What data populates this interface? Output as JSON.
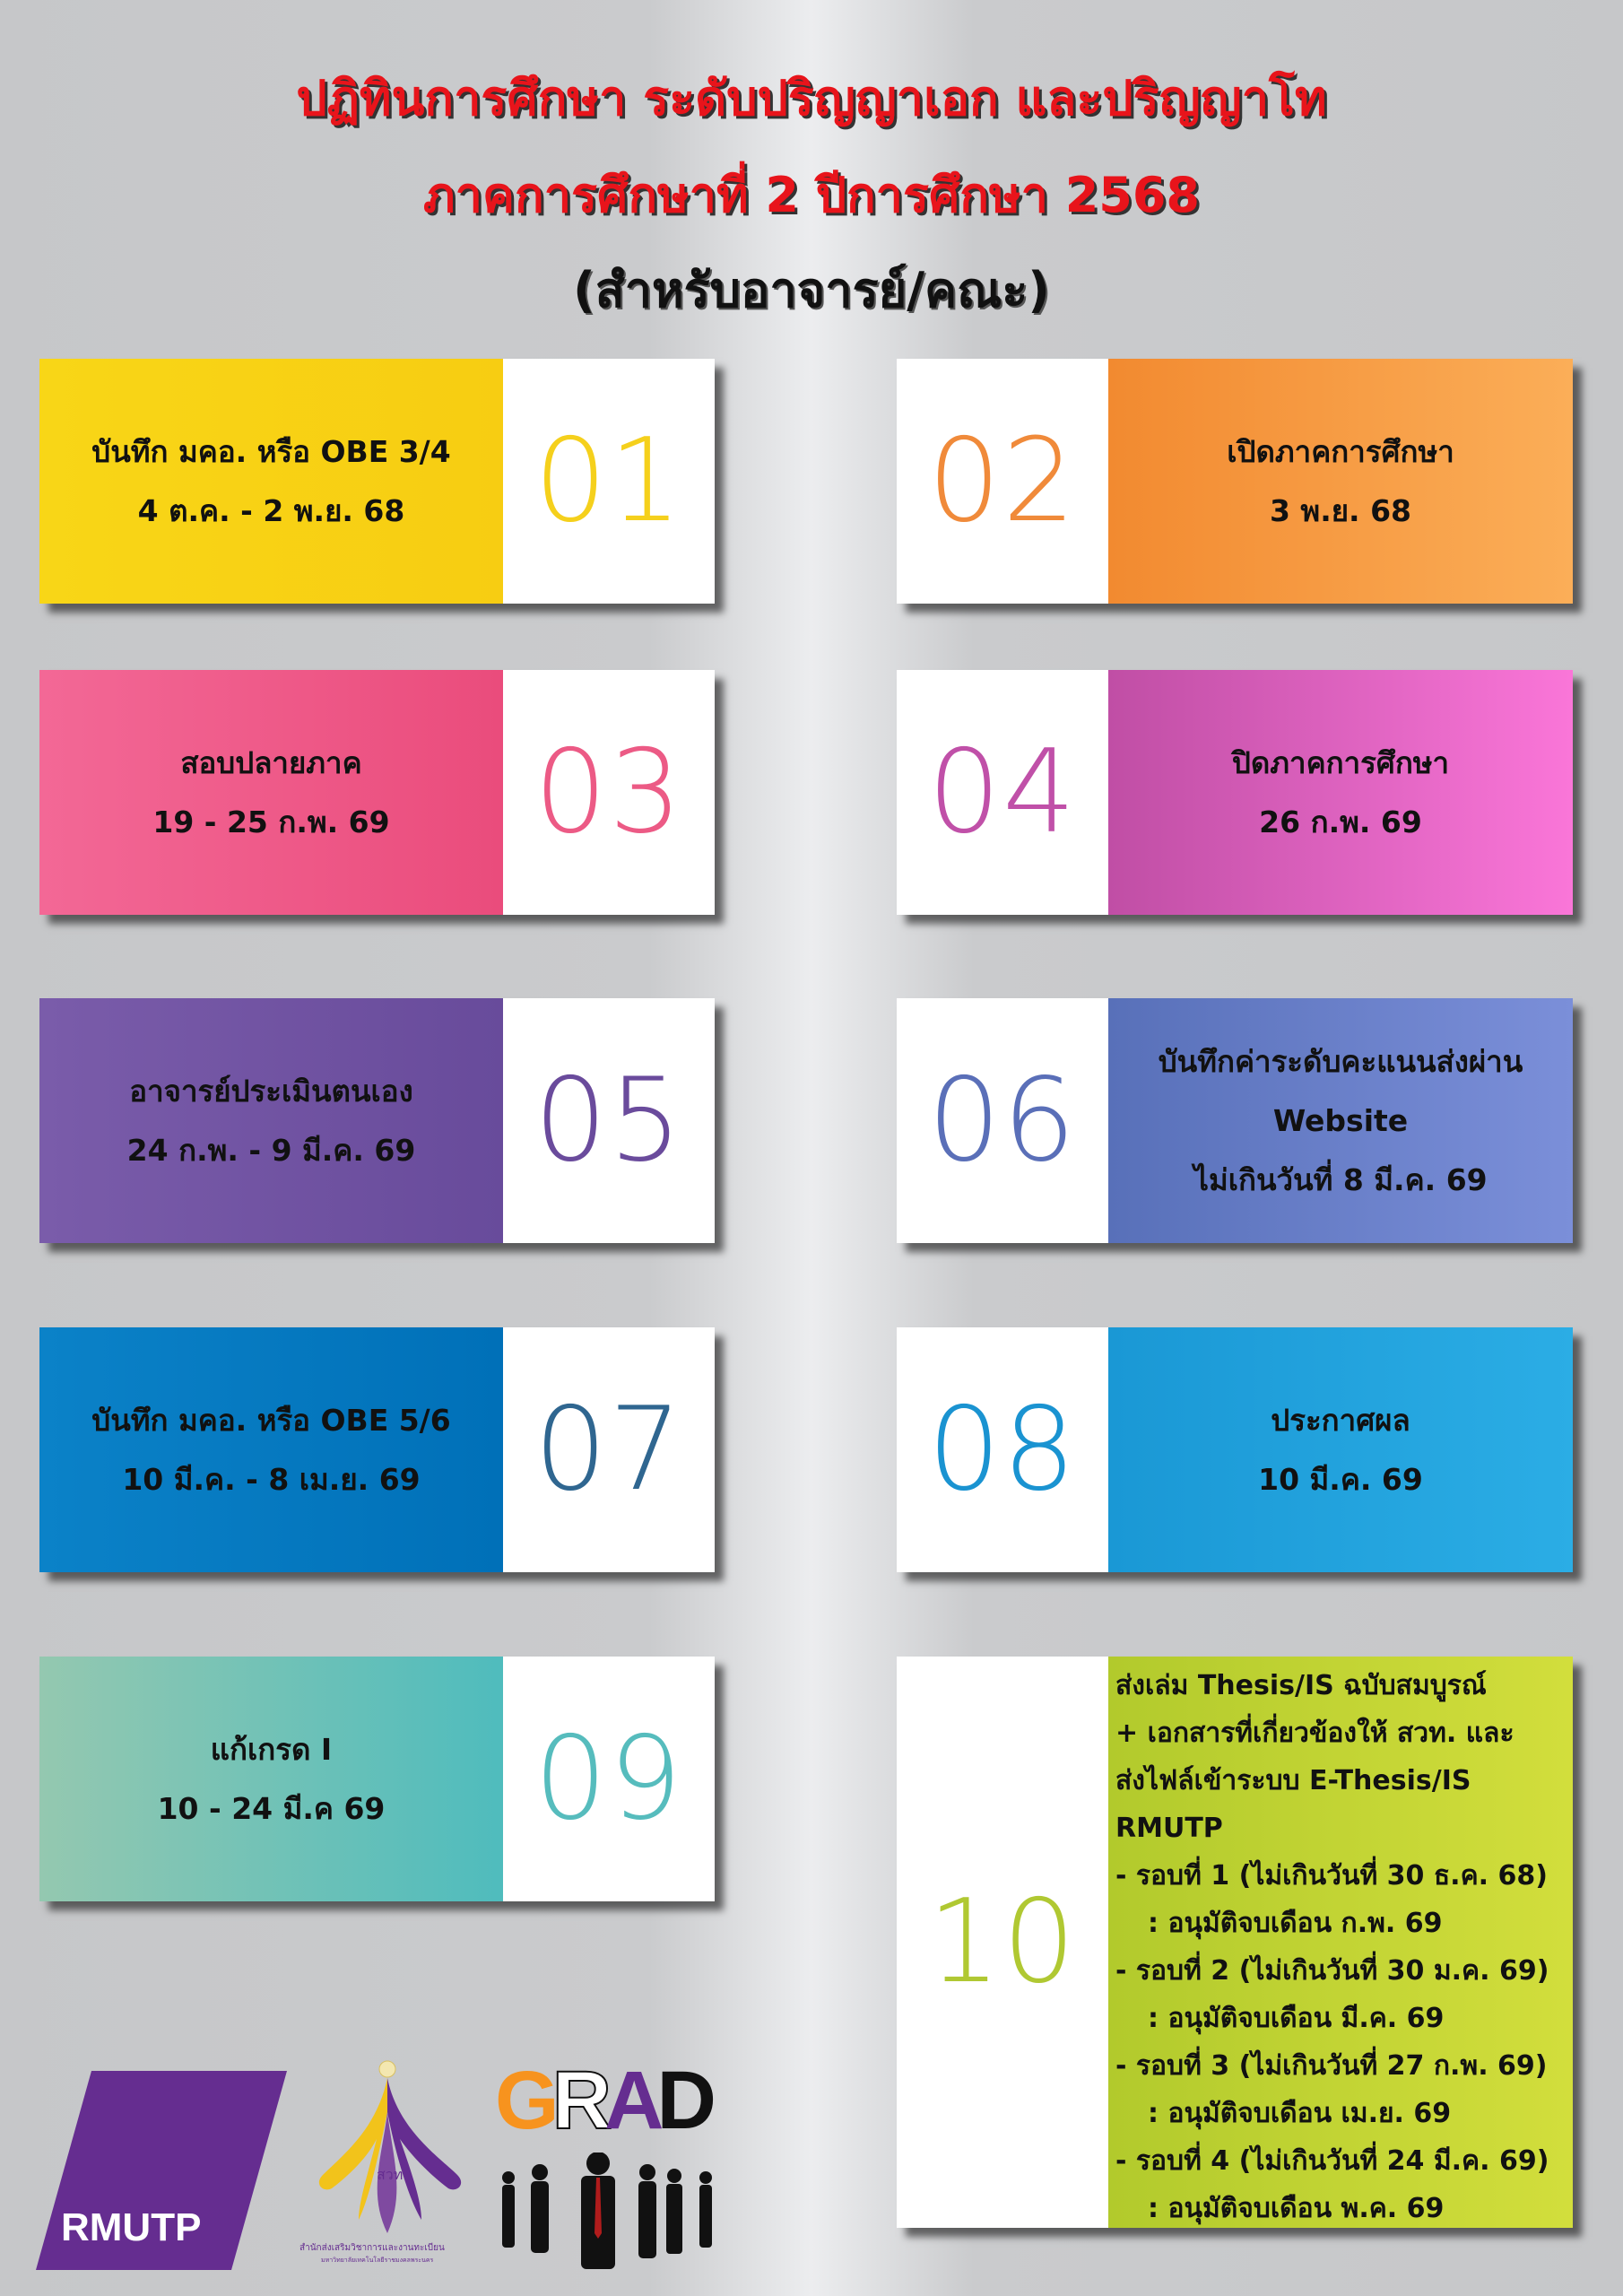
{
  "header": {
    "line1": "ปฏิทินการศึกษา ระดับปริญญาเอก และปริญญาโท",
    "line2": "ภาคการศึกษาที่ 2 ปีการศึกษา 2568",
    "line3": "(สำหรับอาจารย์/คณะ)"
  },
  "cards": [
    {
      "num": "01",
      "lines": [
        "บันทึก มคอ. หรือ OBE 3/4",
        "4 ต.ค. - 2 พ.ย. 68"
      ],
      "color_from": "#f8d617",
      "color_to": "#f7cd12",
      "num_color": "#f5d01c"
    },
    {
      "num": "02",
      "lines": [
        "เปิดภาคการศึกษา",
        "3 พ.ย. 68"
      ],
      "color_from": "#f28a30",
      "color_to": "#fbae58",
      "num_color": "#f08a3a"
    },
    {
      "num": "03",
      "lines": [
        "สอบปลายภาค",
        "19 - 25 ก.พ. 69"
      ],
      "color_from": "#f36896",
      "color_to": "#ea4c7c",
      "num_color": "#ec5a85"
    },
    {
      "num": "04",
      "lines": [
        "ปิดภาคการศึกษา",
        "26 ก.พ. 69"
      ],
      "color_from": "#c04ea5",
      "color_to": "#fa76d8",
      "num_color": "#c050a8"
    },
    {
      "num": "05",
      "lines": [
        "อาจารย์ประเมินตนเอง",
        "24 ก.พ. - 9 มี.ค. 69"
      ],
      "color_from": "#7a5caa",
      "color_to": "#684b9b",
      "num_color": "#6a4b9c"
    },
    {
      "num": "06",
      "lines": [
        "บันทึกค่าระดับคะแนนส่งผ่าน",
        "Website",
        "ไม่เกินวันที่ 8 มี.ค. 69"
      ],
      "color_from": "#5870b9",
      "color_to": "#7b8fd9",
      "num_color": "#5a6fb8"
    },
    {
      "num": "07",
      "lines": [
        "บันทึก มคอ. หรือ OBE 5/6",
        "10 มี.ค. - 8 เม.ย. 69"
      ],
      "color_from": "#0b82c8",
      "color_to": "#0070b8",
      "num_color": "#2f6690"
    },
    {
      "num": "08",
      "lines": [
        "ประกาศผล",
        "10 มี.ค. 69"
      ],
      "color_from": "#1a98d5",
      "color_to": "#2badE5",
      "num_color": "#1a93d1"
    },
    {
      "num": "09",
      "lines": [
        "แก้เกรด I",
        "10 - 24 มี.ค 69"
      ],
      "color_from": "#94c8b0",
      "color_to": "#4fbcbd",
      "num_color": "#56bcbd"
    }
  ],
  "card10": {
    "num": "10",
    "color_from": "#b2ca2c",
    "color_to": "#d2de3c",
    "num_color": "#b0c832",
    "heading": [
      "ส่งเล่ม Thesis/IS ฉบับสมบูรณ์",
      "+ เอกสารที่เกี่ยวข้องให้ สวท. และ",
      "ส่งไฟล์เข้าระบบ E-Thesis/IS RMUTP"
    ],
    "rounds": [
      {
        "deadline": "- รอบที่ 1 (ไม่เกินวันที่ 30 ธ.ค. 68)",
        "approval": ": อนุมัติจบเดือน ก.พ. 69"
      },
      {
        "deadline": "- รอบที่ 2 (ไม่เกินวันที่ 30 ม.ค. 69)",
        "approval": ": อนุมัติจบเดือน มี.ค. 69"
      },
      {
        "deadline": "- รอบที่ 3 (ไม่เกินวันที่ 27 ก.พ. 69)",
        "approval": ": อนุมัติจบเดือน เม.ย. 69"
      },
      {
        "deadline": "- รอบที่ 4 (ไม่เกินวันที่ 24 มี.ค. 69)",
        "approval": ": อนุมัติจบเดือน พ.ค. 69"
      }
    ]
  },
  "logos": {
    "rmutp": "RMUTP",
    "swt_abbr": "สวท",
    "swt_name": "สำนักส่งเสริมวิชาการและงานทะเบียน",
    "swt_sub": "มหาวิทยาลัยเทคโนโลยีราชมงคลพระนคร",
    "grad": "GRAD",
    "colors": {
      "purple": "#652d90",
      "orange": "#f7931e",
      "gold": "#f2c31b"
    }
  }
}
